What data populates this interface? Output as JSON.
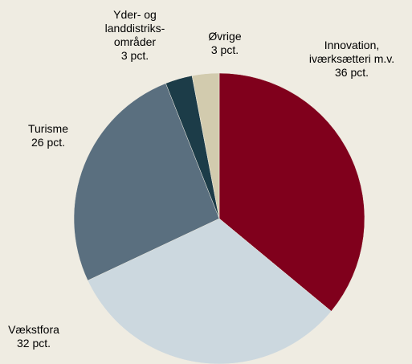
{
  "chart_data": {
    "type": "pie",
    "categories": [
      "Innovation, iværksætteri m.v.",
      "Vækstfora",
      "Turisme",
      "Yder- og landdistriks-områder",
      "Øvrige"
    ],
    "values": [
      36,
      32,
      26,
      3,
      3
    ],
    "value_labels": [
      "36 pct.",
      "32 pct.",
      "26 pct.",
      "3 pct.",
      "3 pct."
    ],
    "colors": [
      "#80001c",
      "#ccd8df",
      "#5a6f7f",
      "#1c3c48",
      "#d2cbae"
    ]
  }
}
